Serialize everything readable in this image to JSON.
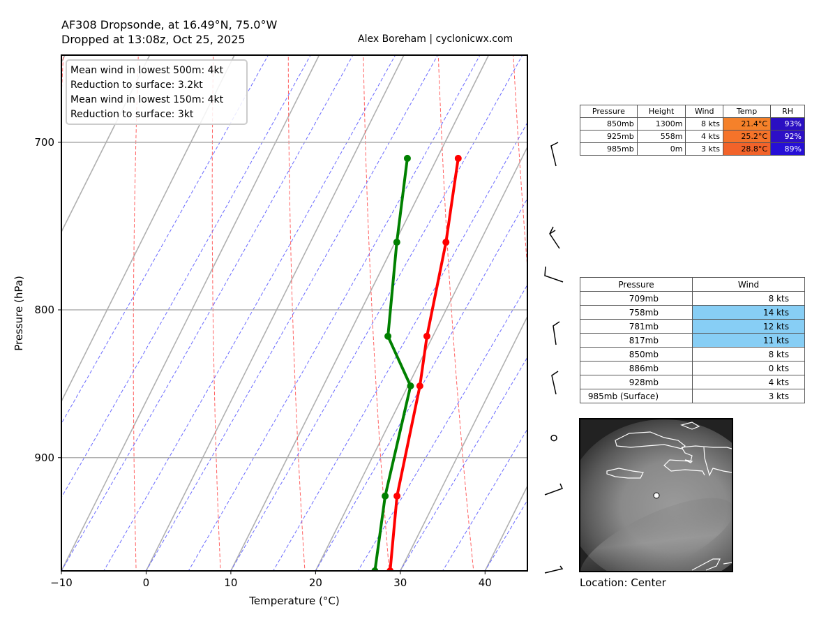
{
  "header": {
    "title_line1": "AF308 Dropsonde, at 16.49°N, 75.0°W",
    "title_line2": "Dropped at 13:08z, Oct 25, 2025",
    "credit": "Alex Boreham | cyclonicwx.com"
  },
  "chart_data": {
    "type": "line",
    "title": "AF308 Dropsonde, at 16.49°N, 75.0°W",
    "xlabel": "Temperature (°C)",
    "ylabel": "Pressure (hPa)",
    "xlim": [
      -10,
      45
    ],
    "ylim": [
      985,
      653
    ],
    "yscale": "log",
    "x_ticks": [
      "−10",
      "0",
      "10",
      "20",
      "30",
      "40"
    ],
    "x_tick_values": [
      -10,
      0,
      10,
      20,
      30,
      40
    ],
    "y_ticks": [
      "700",
      "800",
      "900"
    ],
    "y_tick_values": [
      700,
      800,
      900
    ],
    "grid": true,
    "series": [
      {
        "name": "Temperature",
        "color": "#ff0000",
        "points": [
          [
            985,
            28.8
          ],
          [
            928,
            25.2
          ],
          [
            850,
            21.4
          ],
          [
            817,
            19.3
          ],
          [
            758,
            16.0
          ],
          [
            709,
            12.5
          ]
        ]
      },
      {
        "name": "Dewpoint",
        "color": "#008000",
        "points": [
          [
            985,
            27.0
          ],
          [
            928,
            23.8
          ],
          [
            850,
            20.3
          ],
          [
            817,
            14.7
          ],
          [
            758,
            10.2
          ],
          [
            709,
            6.5
          ]
        ]
      }
    ],
    "legend_box": [
      "Mean wind in lowest 500m: 4kt",
      "Reduction to surface: 3.2kt",
      "Mean wind in lowest 150m:  4kt",
      "Reduction to surface: 3kt"
    ]
  },
  "wind_barbs": [
    {
      "pressure": 709,
      "speed_kts": 8
    },
    {
      "pressure": 758,
      "speed_kts": 14
    },
    {
      "pressure": 781,
      "speed_kts": 12
    },
    {
      "pressure": 817,
      "speed_kts": 11
    },
    {
      "pressure": 850,
      "speed_kts": 8
    },
    {
      "pressure": 886,
      "speed_kts": 0
    },
    {
      "pressure": 928,
      "speed_kts": 4
    },
    {
      "pressure": 985,
      "speed_kts": 3
    }
  ],
  "summary_table": {
    "headers": [
      "Pressure",
      "Height",
      "Wind",
      "Temp",
      "RH"
    ],
    "rows": [
      {
        "pressure": "850mb",
        "height": "1300m",
        "wind": "8 kts",
        "temp": "21.4°C",
        "rh": "93%",
        "temp_color": "#f5812a",
        "rh_color": "#2a0fc2"
      },
      {
        "pressure": "925mb",
        "height": "558m",
        "wind": "4 kts",
        "temp": "25.2°C",
        "rh": "92%",
        "temp_color": "#f5732a",
        "rh_color": "#2d0fc6"
      },
      {
        "pressure": "985mb",
        "height": "0m",
        "wind": "3 kts",
        "temp": "28.8°C",
        "rh": "89%",
        "temp_color": "#f2632a",
        "rh_color": "#260fd6"
      }
    ]
  },
  "wind_table": {
    "headers": [
      "Pressure",
      "Wind"
    ],
    "highlight_color": "#87cef5",
    "rows": [
      {
        "pressure": "709mb",
        "wind": "8 kts",
        "highlight": false
      },
      {
        "pressure": "758mb",
        "wind": "14 kts",
        "highlight": true
      },
      {
        "pressure": "781mb",
        "wind": "12 kts",
        "highlight": true
      },
      {
        "pressure": "817mb",
        "wind": "11 kts",
        "highlight": true
      },
      {
        "pressure": "850mb",
        "wind": "8 kts",
        "highlight": false
      },
      {
        "pressure": "886mb",
        "wind": "0 kts",
        "highlight": false
      },
      {
        "pressure": "928mb",
        "wind": "4 kts",
        "highlight": false
      },
      {
        "pressure": "985mb (Surface)",
        "wind": "3 kts",
        "highlight": false
      }
    ]
  },
  "satellite": {
    "location_label": "Location: Center"
  }
}
